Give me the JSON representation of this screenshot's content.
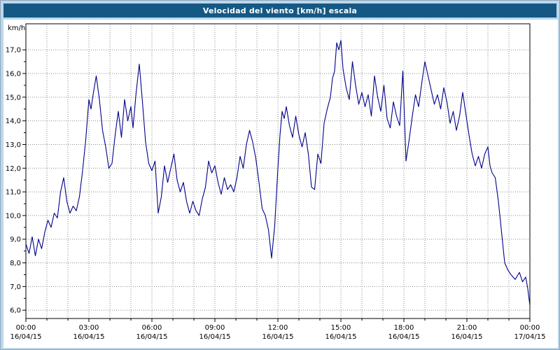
{
  "title_bar": {
    "title": "Velocidad del viento [km/h] escala",
    "bg_color": "#155884",
    "text_color": "#ffffff"
  },
  "colors": {
    "frame_bg": "#bdd7ea",
    "plot_bg": "#ffffff",
    "grid": "#8a8a8a",
    "axis": "#000000",
    "line": "#00008b"
  },
  "chart_data": {
    "type": "line",
    "title": "Velocidad del viento [km/h] escala",
    "xlabel": "",
    "ylabel": "km/h",
    "ylim": [
      5.65,
      18.1
    ],
    "xlim_hours": [
      0,
      24
    ],
    "grid": "dotted",
    "legend": "none",
    "y_ticks": [
      6,
      7,
      8,
      9,
      10,
      11,
      12,
      13,
      14,
      15,
      16,
      17
    ],
    "y_tick_labels": [
      "6,0",
      "7,0",
      "8,0",
      "9,0",
      "10,0",
      "11,0",
      "12,0",
      "13,0",
      "14,0",
      "15,0",
      "16,0",
      "17,0"
    ],
    "x_minor_step_hours": 1,
    "x_major_ticks": [
      {
        "hour": 0,
        "time": "00:00",
        "date": "16/04/15"
      },
      {
        "hour": 3,
        "time": "03:00",
        "date": "16/04/15"
      },
      {
        "hour": 6,
        "time": "06:00",
        "date": "16/04/15"
      },
      {
        "hour": 9,
        "time": "09:00",
        "date": "16/04/15"
      },
      {
        "hour": 12,
        "time": "12:00",
        "date": "16/04/15"
      },
      {
        "hour": 15,
        "time": "15:00",
        "date": "16/04/15"
      },
      {
        "hour": 18,
        "time": "18:00",
        "date": "16/04/15"
      },
      {
        "hour": 21,
        "time": "21:00",
        "date": "16/04/15"
      },
      {
        "hour": 24,
        "time": "00:00",
        "date": "17/04/15"
      }
    ],
    "series": [
      {
        "name": "Velocidad del viento",
        "color": "#00008b",
        "points": [
          [
            0.0,
            8.8
          ],
          [
            0.15,
            8.4
          ],
          [
            0.3,
            9.1
          ],
          [
            0.45,
            8.3
          ],
          [
            0.6,
            9.0
          ],
          [
            0.75,
            8.6
          ],
          [
            0.9,
            9.3
          ],
          [
            1.05,
            9.8
          ],
          [
            1.2,
            9.5
          ],
          [
            1.35,
            10.1
          ],
          [
            1.5,
            9.9
          ],
          [
            1.65,
            11.0
          ],
          [
            1.8,
            11.6
          ],
          [
            1.95,
            10.6
          ],
          [
            2.1,
            10.1
          ],
          [
            2.25,
            10.4
          ],
          [
            2.4,
            10.2
          ],
          [
            2.55,
            10.8
          ],
          [
            2.7,
            11.9
          ],
          [
            2.85,
            13.2
          ],
          [
            3.0,
            14.9
          ],
          [
            3.1,
            14.5
          ],
          [
            3.2,
            15.1
          ],
          [
            3.35,
            15.9
          ],
          [
            3.5,
            14.9
          ],
          [
            3.65,
            13.6
          ],
          [
            3.8,
            12.9
          ],
          [
            3.95,
            12.0
          ],
          [
            4.1,
            12.2
          ],
          [
            4.25,
            13.4
          ],
          [
            4.4,
            14.4
          ],
          [
            4.55,
            13.3
          ],
          [
            4.7,
            14.9
          ],
          [
            4.85,
            14.0
          ],
          [
            5.0,
            14.6
          ],
          [
            5.1,
            13.7
          ],
          [
            5.25,
            15.2
          ],
          [
            5.4,
            16.4
          ],
          [
            5.55,
            14.8
          ],
          [
            5.7,
            13.1
          ],
          [
            5.85,
            12.2
          ],
          [
            6.0,
            11.9
          ],
          [
            6.15,
            12.3
          ],
          [
            6.3,
            10.1
          ],
          [
            6.45,
            10.8
          ],
          [
            6.6,
            12.1
          ],
          [
            6.75,
            11.4
          ],
          [
            6.9,
            12.0
          ],
          [
            7.05,
            12.6
          ],
          [
            7.2,
            11.5
          ],
          [
            7.35,
            11.0
          ],
          [
            7.5,
            11.4
          ],
          [
            7.65,
            10.6
          ],
          [
            7.8,
            10.1
          ],
          [
            7.95,
            10.6
          ],
          [
            8.1,
            10.2
          ],
          [
            8.25,
            10.0
          ],
          [
            8.4,
            10.7
          ],
          [
            8.55,
            11.2
          ],
          [
            8.7,
            12.3
          ],
          [
            8.85,
            11.8
          ],
          [
            9.0,
            12.1
          ],
          [
            9.15,
            11.4
          ],
          [
            9.3,
            10.9
          ],
          [
            9.45,
            11.6
          ],
          [
            9.6,
            11.1
          ],
          [
            9.75,
            11.3
          ],
          [
            9.9,
            11.0
          ],
          [
            10.05,
            11.6
          ],
          [
            10.2,
            12.5
          ],
          [
            10.35,
            12.0
          ],
          [
            10.5,
            13.0
          ],
          [
            10.65,
            13.6
          ],
          [
            10.8,
            13.1
          ],
          [
            10.95,
            12.4
          ],
          [
            11.1,
            11.4
          ],
          [
            11.25,
            10.3
          ],
          [
            11.4,
            10.0
          ],
          [
            11.55,
            9.4
          ],
          [
            11.7,
            8.2
          ],
          [
            11.85,
            9.6
          ],
          [
            12.0,
            12.0
          ],
          [
            12.1,
            13.4
          ],
          [
            12.2,
            14.4
          ],
          [
            12.3,
            14.1
          ],
          [
            12.4,
            14.6
          ],
          [
            12.55,
            13.8
          ],
          [
            12.7,
            13.3
          ],
          [
            12.85,
            14.2
          ],
          [
            13.0,
            13.4
          ],
          [
            13.15,
            12.9
          ],
          [
            13.3,
            13.5
          ],
          [
            13.45,
            12.6
          ],
          [
            13.6,
            11.2
          ],
          [
            13.75,
            11.1
          ],
          [
            13.9,
            12.6
          ],
          [
            14.05,
            12.2
          ],
          [
            14.2,
            13.9
          ],
          [
            14.35,
            14.5
          ],
          [
            14.5,
            15.0
          ],
          [
            14.6,
            15.8
          ],
          [
            14.7,
            16.1
          ],
          [
            14.8,
            17.3
          ],
          [
            14.9,
            17.0
          ],
          [
            15.0,
            17.4
          ],
          [
            15.1,
            16.2
          ],
          [
            15.25,
            15.4
          ],
          [
            15.4,
            14.9
          ],
          [
            15.55,
            16.5
          ],
          [
            15.7,
            15.5
          ],
          [
            15.85,
            14.7
          ],
          [
            16.0,
            15.2
          ],
          [
            16.15,
            14.6
          ],
          [
            16.3,
            15.1
          ],
          [
            16.45,
            14.2
          ],
          [
            16.6,
            15.9
          ],
          [
            16.75,
            15.0
          ],
          [
            16.9,
            14.4
          ],
          [
            17.05,
            15.5
          ],
          [
            17.2,
            14.1
          ],
          [
            17.35,
            13.7
          ],
          [
            17.5,
            14.8
          ],
          [
            17.65,
            14.2
          ],
          [
            17.8,
            13.8
          ],
          [
            17.95,
            16.1
          ],
          [
            18.1,
            12.3
          ],
          [
            18.25,
            13.2
          ],
          [
            18.4,
            14.2
          ],
          [
            18.55,
            15.1
          ],
          [
            18.7,
            14.6
          ],
          [
            18.85,
            15.6
          ],
          [
            19.0,
            16.5
          ],
          [
            19.15,
            15.9
          ],
          [
            19.3,
            15.3
          ],
          [
            19.45,
            14.7
          ],
          [
            19.6,
            15.1
          ],
          [
            19.75,
            14.5
          ],
          [
            19.9,
            15.4
          ],
          [
            20.05,
            14.8
          ],
          [
            20.2,
            13.9
          ],
          [
            20.35,
            14.4
          ],
          [
            20.5,
            13.6
          ],
          [
            20.65,
            14.2
          ],
          [
            20.8,
            15.2
          ],
          [
            20.95,
            14.3
          ],
          [
            21.1,
            13.4
          ],
          [
            21.25,
            12.6
          ],
          [
            21.4,
            12.1
          ],
          [
            21.55,
            12.5
          ],
          [
            21.7,
            12.0
          ],
          [
            21.85,
            12.6
          ],
          [
            22.0,
            12.9
          ],
          [
            22.1,
            12.1
          ],
          [
            22.2,
            11.8
          ],
          [
            22.35,
            11.6
          ],
          [
            22.5,
            10.6
          ],
          [
            22.65,
            9.3
          ],
          [
            22.8,
            8.0
          ],
          [
            22.95,
            7.7
          ],
          [
            23.1,
            7.5
          ],
          [
            23.3,
            7.3
          ],
          [
            23.5,
            7.6
          ],
          [
            23.65,
            7.2
          ],
          [
            23.8,
            7.4
          ],
          [
            23.9,
            6.9
          ],
          [
            24.0,
            6.2
          ]
        ]
      }
    ]
  }
}
